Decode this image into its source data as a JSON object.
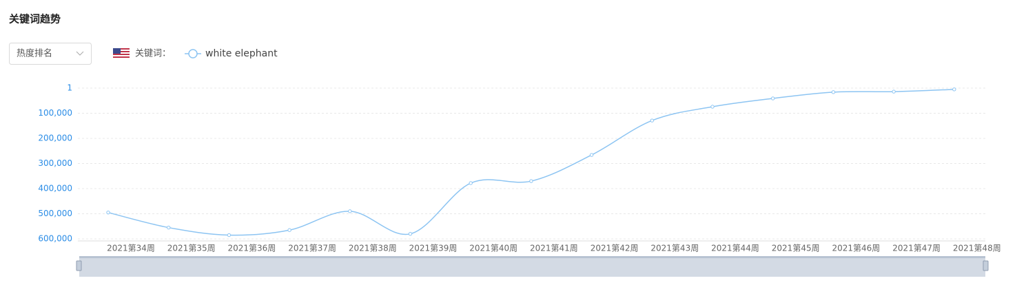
{
  "header": {
    "title": "关键词趋势"
  },
  "controls": {
    "dropdown": "热度排名",
    "keyword_label": "关键词："
  },
  "chart_data": {
    "type": "line",
    "y_inverted": true,
    "smooth": true,
    "grid": true,
    "categories": [
      "2021第34周",
      "2021第35周",
      "2021第36周",
      "2021第37周",
      "2021第38周",
      "2021第39周",
      "2021第40周",
      "2021第41周",
      "2021第42周",
      "2021第43周",
      "2021第44周",
      "2021第45周",
      "2021第46周",
      "2021第47周",
      "2021第48周"
    ],
    "series": [
      {
        "name": "white elephant",
        "color": "#8cc4f2",
        "values": [
          495000,
          555000,
          585000,
          565000,
          490000,
          580000,
          378000,
          370000,
          266000,
          129000,
          74000,
          41000,
          16000,
          14000,
          5000
        ]
      }
    ],
    "ylim": [
      1,
      600000
    ],
    "yticks": [
      1,
      {
        "value": 100000,
        "label": "100,000"
      },
      {
        "value": 200000,
        "label": "200,000"
      },
      {
        "value": 300000,
        "label": "300,000"
      },
      {
        "value": 400000,
        "label": "400,000"
      },
      {
        "value": 500000,
        "label": "500,000"
      },
      {
        "value": 600000,
        "label": "600,000"
      }
    ]
  }
}
